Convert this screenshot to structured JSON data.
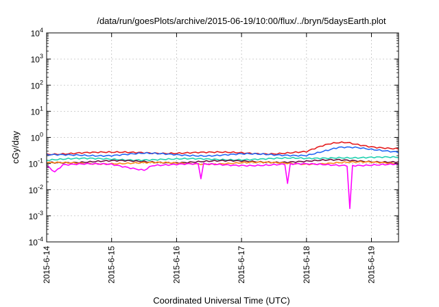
{
  "chart_data": {
    "type": "line",
    "title": "/data/run/goesPlots/archive/2015-06-19/10:00/flux/../bryn/5daysEarth.plot",
    "xlabel": "Coordinated Universal Time (UTC)",
    "ylabel": "cGy/day",
    "y_scale": "log",
    "ylim": [
      0.0001,
      10000
    ],
    "y_ticks": [
      {
        "value": 0.0001,
        "base": "10",
        "exp": "-4"
      },
      {
        "value": 0.001,
        "base": "10",
        "exp": "-3"
      },
      {
        "value": 0.01,
        "base": "10",
        "exp": "-2"
      },
      {
        "value": 0.1,
        "base": "10",
        "exp": "-1"
      },
      {
        "value": 1,
        "base": "10",
        "exp": "0"
      },
      {
        "value": 10,
        "base": "10",
        "exp": "1"
      },
      {
        "value": 100,
        "base": "10",
        "exp": "2"
      },
      {
        "value": 1000,
        "base": "10",
        "exp": "3"
      },
      {
        "value": 10000,
        "base": "10",
        "exp": "4"
      }
    ],
    "xlim": [
      "2015-06-14T00:00",
      "2015-06-19T10:00"
    ],
    "x_ticks": [
      "2015-6-14",
      "2015-6-15",
      "2015-6-16",
      "2015-6-17",
      "2015-6-18",
      "2015-6-19"
    ],
    "grid": true,
    "legend": "none",
    "series": [
      {
        "color": "#e41a1c",
        "points": [
          [
            "2015-06-14T00:00",
            0.24
          ],
          [
            "2015-06-14T12:00",
            0.26
          ],
          [
            "2015-06-15T00:00",
            0.25
          ],
          [
            "2015-06-15T12:00",
            0.27
          ],
          [
            "2015-06-16T00:00",
            0.26
          ],
          [
            "2015-06-16T12:00",
            0.25
          ],
          [
            "2015-06-17T00:00",
            0.26
          ],
          [
            "2015-06-17T12:00",
            0.25
          ],
          [
            "2015-06-18T00:00",
            0.27
          ],
          [
            "2015-06-18T06:00",
            0.45
          ],
          [
            "2015-06-18T09:00",
            0.55
          ],
          [
            "2015-06-18T12:00",
            0.62
          ],
          [
            "2015-06-18T15:00",
            0.65
          ],
          [
            "2015-06-18T18:00",
            0.58
          ],
          [
            "2015-06-19T00:00",
            0.47
          ],
          [
            "2015-06-19T06:00",
            0.4
          ],
          [
            "2015-06-19T10:00",
            0.36
          ]
        ]
      },
      {
        "color": "#2166f3",
        "points": [
          [
            "2015-06-14T00:00",
            0.2
          ],
          [
            "2015-06-14T12:00",
            0.22
          ],
          [
            "2015-06-15T00:00",
            0.21
          ],
          [
            "2015-06-15T12:00",
            0.23
          ],
          [
            "2015-06-16T00:00",
            0.22
          ],
          [
            "2015-06-16T12:00",
            0.21
          ],
          [
            "2015-06-17T00:00",
            0.22
          ],
          [
            "2015-06-17T12:00",
            0.21
          ],
          [
            "2015-06-18T00:00",
            0.22
          ],
          [
            "2015-06-18T06:00",
            0.3
          ],
          [
            "2015-06-18T12:00",
            0.4
          ],
          [
            "2015-06-18T18:00",
            0.38
          ],
          [
            "2015-06-19T00:00",
            0.33
          ],
          [
            "2015-06-19T10:00",
            0.29
          ]
        ]
      },
      {
        "color": "#1fd0b0",
        "points": [
          [
            "2015-06-14T00:00",
            0.14
          ],
          [
            "2015-06-15T00:00",
            0.15
          ],
          [
            "2015-06-16T00:00",
            0.14
          ],
          [
            "2015-06-17T00:00",
            0.15
          ],
          [
            "2015-06-18T00:00",
            0.15
          ],
          [
            "2015-06-18T12:00",
            0.18
          ],
          [
            "2015-06-19T00:00",
            0.17
          ],
          [
            "2015-06-19T10:00",
            0.16
          ]
        ]
      },
      {
        "color": "#6b0d3a",
        "points": [
          [
            "2015-06-14T00:00",
            0.115
          ],
          [
            "2015-06-15T00:00",
            0.12
          ],
          [
            "2015-06-16T00:00",
            0.115
          ],
          [
            "2015-06-17T00:00",
            0.12
          ],
          [
            "2015-06-18T00:00",
            0.12
          ],
          [
            "2015-06-18T12:00",
            0.13
          ],
          [
            "2015-06-19T00:00",
            0.125
          ],
          [
            "2015-06-19T10:00",
            0.12
          ]
        ]
      },
      {
        "color": "#ff8c1a",
        "points": [
          [
            "2015-06-14T00:00",
            0.1
          ],
          [
            "2015-06-15T00:00",
            0.105
          ],
          [
            "2015-06-16T00:00",
            0.1
          ],
          [
            "2015-06-17T00:00",
            0.105
          ],
          [
            "2015-06-18T00:00",
            0.1
          ],
          [
            "2015-06-18T12:00",
            0.11
          ],
          [
            "2015-06-19T00:00",
            0.105
          ],
          [
            "2015-06-19T10:00",
            0.1
          ]
        ]
      },
      {
        "color": "#ff00ff",
        "points": [
          [
            "2015-06-14T00:00",
            0.09
          ],
          [
            "2015-06-14T03:00",
            0.05
          ],
          [
            "2015-06-14T06:00",
            0.09
          ],
          [
            "2015-06-15T00:00",
            0.09
          ],
          [
            "2015-06-15T12:00",
            0.06
          ],
          [
            "2015-06-15T15:00",
            0.09
          ],
          [
            "2015-06-16T08:00",
            0.09
          ],
          [
            "2015-06-16T09:00",
            0.025
          ],
          [
            "2015-06-16T10:00",
            0.09
          ],
          [
            "2015-06-17T16:00",
            0.09
          ],
          [
            "2015-06-17T17:00",
            0.016
          ],
          [
            "2015-06-17T18:00",
            0.09
          ],
          [
            "2015-06-18T15:00",
            0.09
          ],
          [
            "2015-06-18T16:00",
            0.002
          ],
          [
            "2015-06-18T17:00",
            0.09
          ],
          [
            "2015-06-19T00:00",
            0.09
          ],
          [
            "2015-06-19T10:00",
            0.088
          ]
        ]
      }
    ]
  }
}
